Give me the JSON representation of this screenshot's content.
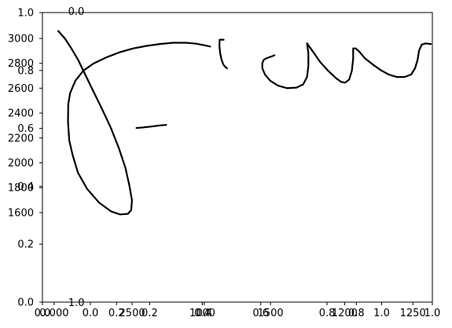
{
  "chart_data": {
    "type": "line",
    "title": "",
    "xlabel": "",
    "ylabel": "",
    "grid": false,
    "legend": "none",
    "colors": {
      "ink": "#000000",
      "background": "#ffffff",
      "frame": "#000000"
    },
    "primary_axes": {
      "xlim": [
        0.0,
        1.0
      ],
      "ylim": [
        0.0,
        1.0
      ],
      "x_ticks": [
        {
          "value": 0.0,
          "label": "0.0"
        },
        {
          "value": 1.0,
          "label": "1.0"
        }
      ],
      "y_ticks": [
        {
          "value": 0.0,
          "label": "0.0"
        },
        {
          "value": 0.2,
          "label": "0.2"
        },
        {
          "value": 0.4,
          "label": "0.4"
        },
        {
          "value": 0.6,
          "label": "0.6"
        },
        {
          "value": 0.8,
          "label": "0.8"
        },
        {
          "value": 1.0,
          "label": "1.0"
        }
      ]
    },
    "overlay_tick_labels": {
      "y_left": [
        "1600",
        "1800",
        "2000",
        "2200",
        "2400",
        "2600",
        "2800",
        "3000"
      ],
      "top": [
        "0.0"
      ],
      "bottom_row": [
        {
          "text": "0.0",
          "at": 0.0
        },
        {
          "text": "0.000",
          "at": 0.03
        },
        {
          "text": "0.0",
          "at": 0.123
        },
        {
          "text": "0.2",
          "at": 0.19
        },
        {
          "text": "2500",
          "at": 0.23
        },
        {
          "text": "0.2",
          "at": 0.275
        },
        {
          "text": "0.4",
          "at": 0.41
        },
        {
          "text": "1000",
          "at": 0.41
        },
        {
          "text": "0.4",
          "at": 0.415
        },
        {
          "text": "0.6",
          "at": 0.56
        },
        {
          "text": "1500",
          "at": 0.585
        },
        {
          "text": "0.8",
          "at": 0.73
        },
        {
          "text": "1200",
          "at": 0.775
        },
        {
          "text": "0.8",
          "at": 0.805
        },
        {
          "text": "1.0",
          "at": 0.87
        },
        {
          "text": "1250",
          "at": 0.95
        },
        {
          "text": "1.0",
          "at": 1.0
        }
      ],
      "sub_bottom": [
        {
          "text": "1.0",
          "at": 0.087
        }
      ]
    },
    "strokes": [
      {
        "name": "letter-f-loop",
        "points": [
          [
            0.045,
            3060
          ],
          [
            0.07,
            3000
          ],
          [
            0.095,
            2920
          ],
          [
            0.12,
            2830
          ],
          [
            0.145,
            2720
          ],
          [
            0.175,
            2590
          ],
          [
            0.21,
            2440
          ],
          [
            0.245,
            2280
          ],
          [
            0.275,
            2120
          ],
          [
            0.3,
            1960
          ],
          [
            0.315,
            1820
          ],
          [
            0.325,
            1700
          ],
          [
            0.322,
            1620
          ],
          [
            0.31,
            1590
          ],
          [
            0.28,
            1585
          ],
          [
            0.245,
            1610
          ],
          [
            0.2,
            1680
          ],
          [
            0.155,
            1790
          ],
          [
            0.12,
            1920
          ],
          [
            0.1,
            2060
          ],
          [
            0.087,
            2180
          ],
          [
            0.082,
            2330
          ],
          [
            0.083,
            2470
          ],
          [
            0.09,
            2560
          ],
          [
            0.11,
            2660
          ],
          [
            0.14,
            2740
          ],
          [
            0.18,
            2800
          ],
          [
            0.23,
            2850
          ],
          [
            0.28,
            2890
          ],
          [
            0.33,
            2920
          ],
          [
            0.38,
            2940
          ],
          [
            0.43,
            2955
          ],
          [
            0.48,
            2965
          ],
          [
            0.53,
            2965
          ],
          [
            0.57,
            2958
          ],
          [
            0.6,
            2945
          ],
          [
            0.622,
            2935
          ]
        ]
      },
      {
        "name": "letter-f-crossbar",
        "points": [
          [
            0.342,
            2280
          ],
          [
            0.37,
            2285
          ],
          [
            0.4,
            2292
          ],
          [
            0.43,
            2300
          ],
          [
            0.455,
            2305
          ]
        ]
      },
      {
        "name": "letter-r",
        "points": [
          [
            0.673,
            2990
          ],
          [
            0.658,
            2990
          ],
          [
            0.657,
            2940
          ],
          [
            0.66,
            2880
          ],
          [
            0.665,
            2830
          ],
          [
            0.672,
            2790
          ],
          [
            0.68,
            2770
          ],
          [
            0.686,
            2760
          ]
        ]
      },
      {
        "name": "letter-o",
        "points": [
          [
            0.866,
            2865
          ],
          [
            0.855,
            2855
          ],
          [
            0.845,
            2848
          ],
          [
            0.835,
            2840
          ],
          [
            0.825,
            2828
          ],
          [
            0.82,
            2800
          ],
          [
            0.82,
            2760
          ],
          [
            0.83,
            2710
          ],
          [
            0.85,
            2660
          ],
          [
            0.88,
            2620
          ],
          [
            0.915,
            2600
          ],
          [
            0.95,
            2605
          ],
          [
            0.975,
            2630
          ],
          [
            0.99,
            2690
          ],
          [
            0.995,
            2780
          ],
          [
            0.995,
            2880
          ],
          [
            0.99,
            2960
          ]
        ]
      },
      {
        "name": "letter-n",
        "points": [
          [
            0.99,
            2960
          ],
          [
            1.01,
            2900
          ],
          [
            1.04,
            2810
          ],
          [
            1.07,
            2740
          ],
          [
            1.1,
            2680
          ],
          [
            1.12,
            2650
          ],
          [
            1.135,
            2645
          ],
          [
            1.15,
            2670
          ],
          [
            1.16,
            2740
          ],
          [
            1.165,
            2840
          ],
          [
            1.165,
            2920
          ],
          [
            1.175,
            2920
          ],
          [
            1.19,
            2890
          ],
          [
            1.21,
            2840
          ],
          [
            1.24,
            2790
          ],
          [
            1.27,
            2745
          ],
          [
            1.3,
            2710
          ],
          [
            1.33,
            2690
          ],
          [
            1.36,
            2690
          ],
          [
            1.385,
            2710
          ],
          [
            1.4,
            2760
          ],
          [
            1.41,
            2830
          ],
          [
            1.415,
            2900
          ],
          [
            1.425,
            2950
          ],
          [
            1.44,
            2960
          ],
          [
            1.46,
            2955
          ]
        ]
      }
    ]
  }
}
